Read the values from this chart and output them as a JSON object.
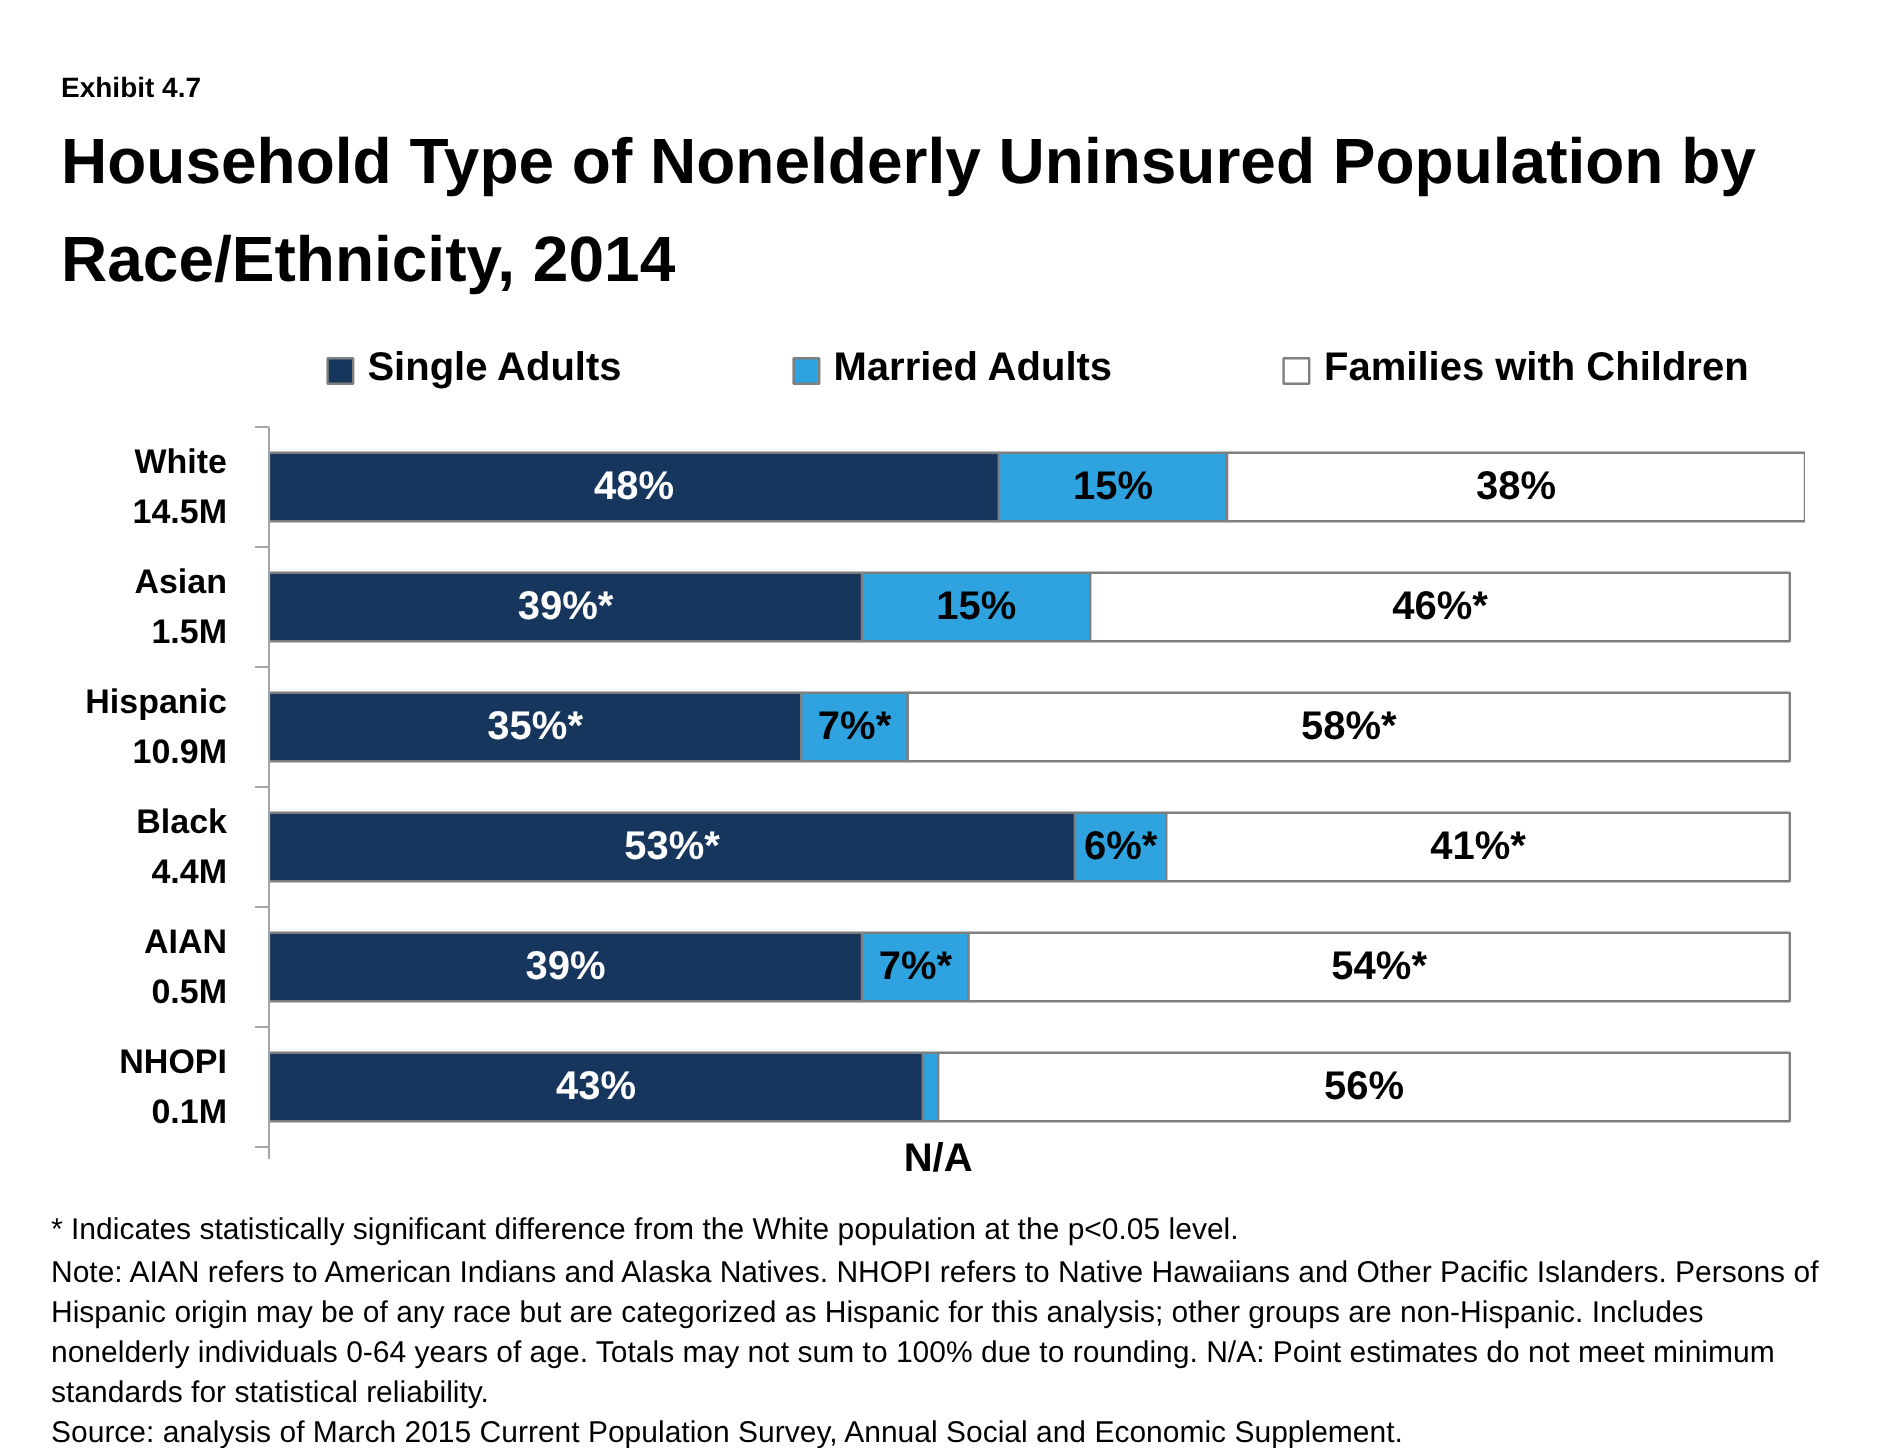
{
  "chart_data": {
    "type": "bar",
    "orientation": "horizontal",
    "stacked": true,
    "subtitle": "Exhibit 4.7",
    "title": "Household Type of Nonelderly Uninsured Population by Race/Ethnicity, 2014",
    "categories": [
      "White\n14.5M",
      "Asian\n1.5M",
      "Hispanic\n10.9M",
      "Black\n4.4M",
      "AIAN\n0.5M",
      "NHOPI\n0.1M"
    ],
    "series": [
      {
        "name": "Single Adults",
        "color": "#17365d",
        "values": [
          48,
          39,
          35,
          53,
          39,
          43
        ],
        "value_labels": [
          "48%",
          "39%*",
          "35%*",
          "53%*",
          "39%",
          "43%"
        ]
      },
      {
        "name": "Married Adults",
        "color": "#2ea3e0",
        "values": [
          15,
          15,
          7,
          6,
          7,
          1
        ],
        "value_labels": [
          "15%",
          "15%",
          "7%*",
          "6%*",
          "7%*",
          null
        ]
      },
      {
        "name": "Families with Children",
        "color": "#ffffff",
        "values": [
          38,
          46,
          58,
          41,
          54,
          56
        ],
        "value_labels": [
          "38%",
          "46%*",
          "58%*",
          "41%*",
          "54%*",
          "56%"
        ]
      }
    ],
    "legend": "top",
    "grid": false,
    "tick_labels": "y",
    "annotations": [
      {
        "text": "N/A",
        "x": 44,
        "y": "NHOPI\n0.1M"
      },
      "* Indicates statistically significant difference from the White population at the p<0.05 level.",
      "Note: AIAN refers to American Indians and Alaska Natives. NHOPI refers to Native Hawaiians and Other Pacific Islanders. Persons of Hispanic origin may be of any race but are categorized as Hispanic for this analysis; other groups are non-Hispanic. Includes nonelderly individuals 0-64 years of age. Totals may not sum to 100% due to rounding. N/A: Point estimates do not meet minimum standards for statistical reliability.",
      "Source: analysis of March 2015 Current Population Survey, Annual Social and Economic Supplement."
    ]
  }
}
